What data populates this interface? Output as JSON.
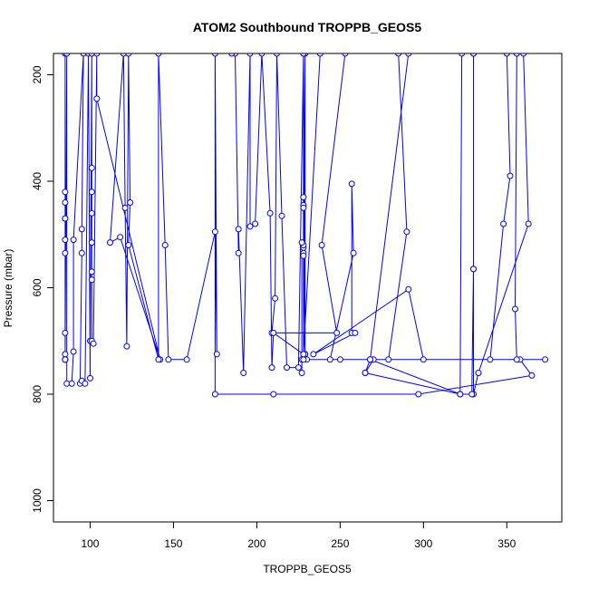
{
  "chart_data": {
    "type": "line",
    "title": "ATOM2 Southbound TROPPB_GEOS5",
    "xlabel": "TROPPB_GEOS5",
    "ylabel": "Pressure (mbar)",
    "xlim": [
      78,
      383
    ],
    "ylim": [
      1040,
      160
    ],
    "y_reversed": true,
    "x_ticks": [
      100,
      150,
      200,
      250,
      300,
      350
    ],
    "y_ticks": [
      200,
      400,
      600,
      800,
      1000
    ],
    "grid": false,
    "marker": "open-circle",
    "series": [
      {
        "color": "#0000ff",
        "points": [
          [
            85,
            160
          ],
          [
            85,
            735
          ],
          [
            85,
            420
          ],
          [
            85,
            735
          ],
          [
            85,
            470
          ],
          [
            85,
            735
          ],
          [
            85,
            510
          ],
          [
            85,
            735
          ],
          [
            85,
            535
          ],
          [
            85,
            685
          ],
          [
            85,
            725
          ],
          [
            85,
            160
          ],
          [
            85,
            440
          ],
          [
            85,
            735
          ],
          [
            85,
            470
          ],
          [
            85,
            735
          ],
          [
            86,
            160
          ],
          [
            86,
            780
          ],
          [
            89,
            780
          ],
          [
            90,
            720
          ],
          [
            90,
            510
          ],
          [
            96,
            160
          ],
          [
            95,
            490
          ],
          [
            95,
            535
          ],
          [
            94,
            780
          ],
          [
            95,
            775
          ],
          [
            97,
            780
          ],
          [
            99,
            160
          ],
          [
            100,
            770
          ],
          [
            100,
            700
          ],
          [
            101,
            160
          ],
          [
            101,
            420
          ],
          [
            101,
            375
          ],
          [
            101,
            460
          ],
          [
            101,
            515
          ],
          [
            101,
            570
          ],
          [
            101,
            585
          ],
          [
            101,
            700
          ],
          [
            102,
            705
          ],
          [
            104,
            160
          ],
          [
            104,
            245
          ],
          [
            142,
            735
          ],
          [
            118,
            505
          ],
          [
            112,
            515
          ],
          [
            120,
            160
          ],
          [
            121,
            450
          ],
          [
            122,
            710
          ],
          [
            123,
            160
          ],
          [
            124,
            440
          ],
          [
            123,
            520
          ],
          [
            141,
            735
          ],
          [
            141,
            160
          ],
          [
            145,
            520
          ],
          [
            147,
            735
          ],
          [
            158,
            735
          ],
          [
            175,
            495
          ],
          [
            176,
            725
          ],
          [
            175,
            160
          ],
          [
            175,
            800
          ],
          [
            210,
            800
          ],
          [
            297,
            800
          ],
          [
            365,
            765
          ],
          [
            358,
            735
          ],
          [
            356,
            735
          ],
          [
            355,
            640
          ],
          [
            356,
            160
          ],
          [
            360,
            160
          ],
          [
            363,
            480
          ],
          [
            333,
            760
          ],
          [
            330,
            800
          ],
          [
            330,
            565
          ],
          [
            330,
            160
          ],
          [
            350,
            160
          ],
          [
            352,
            390
          ],
          [
            348,
            480
          ],
          [
            340,
            735
          ],
          [
            373,
            735
          ],
          [
            250,
            735
          ],
          [
            244,
            735
          ],
          [
            258,
            535
          ],
          [
            257,
            405
          ],
          [
            257,
            685
          ],
          [
            259,
            685
          ],
          [
            234,
            725
          ],
          [
            291,
            603
          ],
          [
            300,
            735
          ],
          [
            270,
            735
          ],
          [
            265,
            760
          ],
          [
            268,
            735
          ],
          [
            291,
            160
          ],
          [
            285,
            160
          ],
          [
            290,
            495
          ],
          [
            279,
            735
          ],
          [
            268,
            735
          ],
          [
            265,
            760
          ],
          [
            322,
            800
          ],
          [
            323,
            160
          ],
          [
            330,
            160
          ],
          [
            330,
            565
          ],
          [
            329,
            800
          ],
          [
            322,
            800
          ],
          [
            268,
            735
          ],
          [
            230,
            735
          ],
          [
            228,
            725
          ],
          [
            228,
            160
          ],
          [
            228,
            430
          ],
          [
            228,
            525
          ],
          [
            228,
            535
          ],
          [
            228,
            445
          ],
          [
            228,
            520
          ],
          [
            228,
            540
          ],
          [
            227,
            515
          ],
          [
            227,
            760
          ],
          [
            227,
            735
          ],
          [
            228,
            735
          ],
          [
            228,
            725
          ],
          [
            229,
            160
          ],
          [
            229,
            725
          ],
          [
            228,
            450
          ],
          [
            229,
            725
          ],
          [
            228,
            160
          ],
          [
            225,
            750
          ],
          [
            218,
            750
          ],
          [
            215,
            465
          ],
          [
            212,
            160
          ],
          [
            211,
            620
          ],
          [
            209,
            685
          ],
          [
            248,
            685
          ],
          [
            239,
            520
          ],
          [
            253,
            160
          ],
          [
            238,
            160
          ],
          [
            228,
            725
          ],
          [
            210,
            685
          ],
          [
            209,
            750
          ],
          [
            208,
            460
          ],
          [
            203,
            160
          ],
          [
            199,
            480
          ],
          [
            196,
            485
          ],
          [
            196,
            160
          ],
          [
            192,
            760
          ],
          [
            189,
            490
          ],
          [
            189,
            535
          ],
          [
            187,
            160
          ],
          [
            185,
            160
          ]
        ]
      }
    ]
  }
}
